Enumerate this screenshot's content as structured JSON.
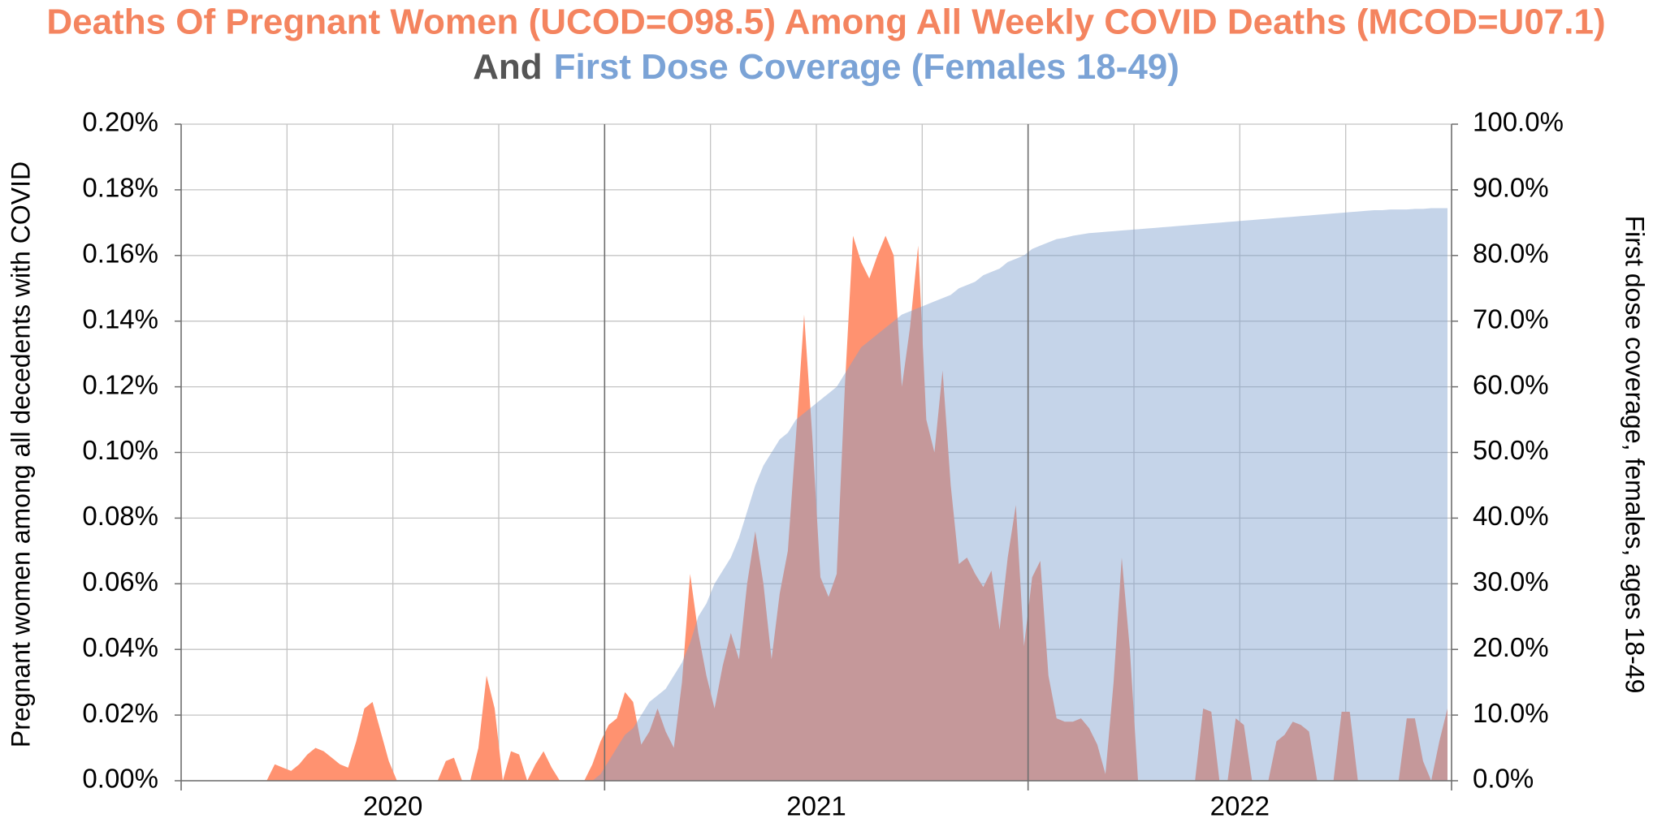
{
  "chart_data": {
    "type": "area",
    "title_line1": "Deaths Of Pregnant Women (UCOD=O98.5) Among All Weekly COVID Deaths (MCOD=U07.1)",
    "title_line2_prefix": "And",
    "title_line2_highlight": "First Dose Coverage (Females 18-49)",
    "title_line1_color": "#f4845f",
    "title_line2_prefix_color": "#555555",
    "title_line2_highlight_color": "#7ba3d6",
    "ylabel": "Pregnant women among all decedents with COVID",
    "y2label": "First dose coverage, females, ages 18-49",
    "year_labels": [
      "2020",
      "2021",
      "2022"
    ],
    "ylim": [
      0,
      0.2
    ],
    "yticks": [
      {
        "value": 0,
        "label": "0.00%"
      },
      {
        "value": 0.02,
        "label": "0.02%"
      },
      {
        "value": 0.04,
        "label": "0.04%"
      },
      {
        "value": 0.06,
        "label": "0.06%"
      },
      {
        "value": 0.08,
        "label": "0.08%"
      },
      {
        "value": 0.1,
        "label": "0.10%"
      },
      {
        "value": 0.12,
        "label": "0.12%"
      },
      {
        "value": 0.14,
        "label": "0.14%"
      },
      {
        "value": 0.16,
        "label": "0.16%"
      },
      {
        "value": 0.18,
        "label": "0.18%"
      },
      {
        "value": 0.2,
        "label": "0.20%"
      }
    ],
    "y2lim": [
      0,
      100
    ],
    "y2ticks": [
      {
        "value": 0,
        "label": "0.0%"
      },
      {
        "value": 10,
        "label": "10.0%"
      },
      {
        "value": 20,
        "label": "20.0%"
      },
      {
        "value": 30,
        "label": "30.0%"
      },
      {
        "value": 40,
        "label": "40.0%"
      },
      {
        "value": 50,
        "label": "50.0%"
      },
      {
        "value": 60,
        "label": "60.0%"
      },
      {
        "value": 70,
        "label": "70.0%"
      },
      {
        "value": 80,
        "label": "80.0%"
      },
      {
        "value": 90,
        "label": "90.0%"
      },
      {
        "value": 100,
        "label": "100.0%"
      }
    ],
    "grid": true,
    "series": [
      {
        "name": "Pregnant women among all decedents with COVID",
        "color": "#ff9270",
        "axis": "y",
        "values": [
          0,
          0,
          0,
          0,
          0,
          0,
          0,
          0,
          0,
          0,
          0,
          0.005,
          0.004,
          0.003,
          0.005,
          0.008,
          0.01,
          0.009,
          0.007,
          0.005,
          0.004,
          0.012,
          0.022,
          0.024,
          0.015,
          0.006,
          0,
          0,
          0,
          0,
          0,
          0,
          0.006,
          0.007,
          0,
          0,
          0.01,
          0.032,
          0.022,
          0,
          0.009,
          0.008,
          0,
          0.005,
          0.009,
          0.004,
          0,
          0,
          0,
          0,
          0.005,
          0.012,
          0.017,
          0.019,
          0.027,
          0.024,
          0.011,
          0.015,
          0.022,
          0.015,
          0.01,
          0.03,
          0.063,
          0.045,
          0.032,
          0.022,
          0.035,
          0.045,
          0.037,
          0.06,
          0.076,
          0.06,
          0.037,
          0.057,
          0.07,
          0.105,
          0.142,
          0.105,
          0.062,
          0.056,
          0.063,
          0.12,
          0.166,
          0.158,
          0.153,
          0.16,
          0.166,
          0.16,
          0.12,
          0.138,
          0.163,
          0.11,
          0.1,
          0.125,
          0.09,
          0.066,
          0.068,
          0.063,
          0.059,
          0.064,
          0.046,
          0.068,
          0.084,
          0.041,
          0.062,
          0.067,
          0.032,
          0.019,
          0.018,
          0.018,
          0.019,
          0.016,
          0.011,
          0.002,
          0.03,
          0.068,
          0.04,
          0,
          0,
          0,
          0,
          0,
          0,
          0,
          0,
          0.022,
          0.021,
          0,
          0,
          0.019,
          0.017,
          0,
          0,
          0,
          0.012,
          0.014,
          0.018,
          0.017,
          0.015,
          0,
          0,
          0,
          0.021,
          0.021,
          0,
          0,
          0,
          0,
          0,
          0,
          0.019,
          0.019,
          0.006,
          0,
          0.012,
          0.022
        ]
      },
      {
        "name": "First dose coverage, females, ages 18-49",
        "color": "#7f9fcf",
        "axis": "y2",
        "values": [
          null,
          null,
          null,
          null,
          null,
          null,
          null,
          null,
          null,
          null,
          null,
          null,
          null,
          null,
          null,
          null,
          null,
          null,
          null,
          null,
          null,
          null,
          null,
          null,
          null,
          null,
          null,
          null,
          null,
          null,
          null,
          null,
          null,
          null,
          null,
          null,
          null,
          null,
          null,
          null,
          null,
          null,
          null,
          null,
          null,
          null,
          null,
          null,
          null,
          null,
          0,
          1,
          3,
          5,
          7,
          8,
          10,
          12,
          13,
          14,
          16,
          18,
          21,
          25,
          27,
          30,
          32,
          34,
          37,
          41,
          45,
          48,
          50,
          52,
          53,
          55,
          56,
          57,
          58,
          59,
          60,
          62,
          64,
          66,
          67,
          68,
          69,
          70,
          71,
          71.5,
          72,
          72.5,
          73,
          73.5,
          74,
          75,
          75.5,
          76,
          77,
          77.5,
          78,
          79,
          79.5,
          80,
          81,
          81.5,
          82,
          82.5,
          82.7,
          83,
          83.2,
          83.4,
          83.5,
          83.6,
          83.7,
          83.8,
          83.9,
          84,
          84.1,
          84.2,
          84.3,
          84.4,
          84.5,
          84.6,
          84.7,
          84.8,
          84.9,
          85,
          85.1,
          85.2,
          85.3,
          85.4,
          85.5,
          85.6,
          85.7,
          85.8,
          85.9,
          86,
          86.1,
          86.2,
          86.3,
          86.4,
          86.5,
          86.6,
          86.7,
          86.8,
          86.9,
          86.9,
          87,
          87,
          87,
          87.1,
          87.1,
          87.2,
          87.2,
          87.2
        ]
      }
    ]
  }
}
